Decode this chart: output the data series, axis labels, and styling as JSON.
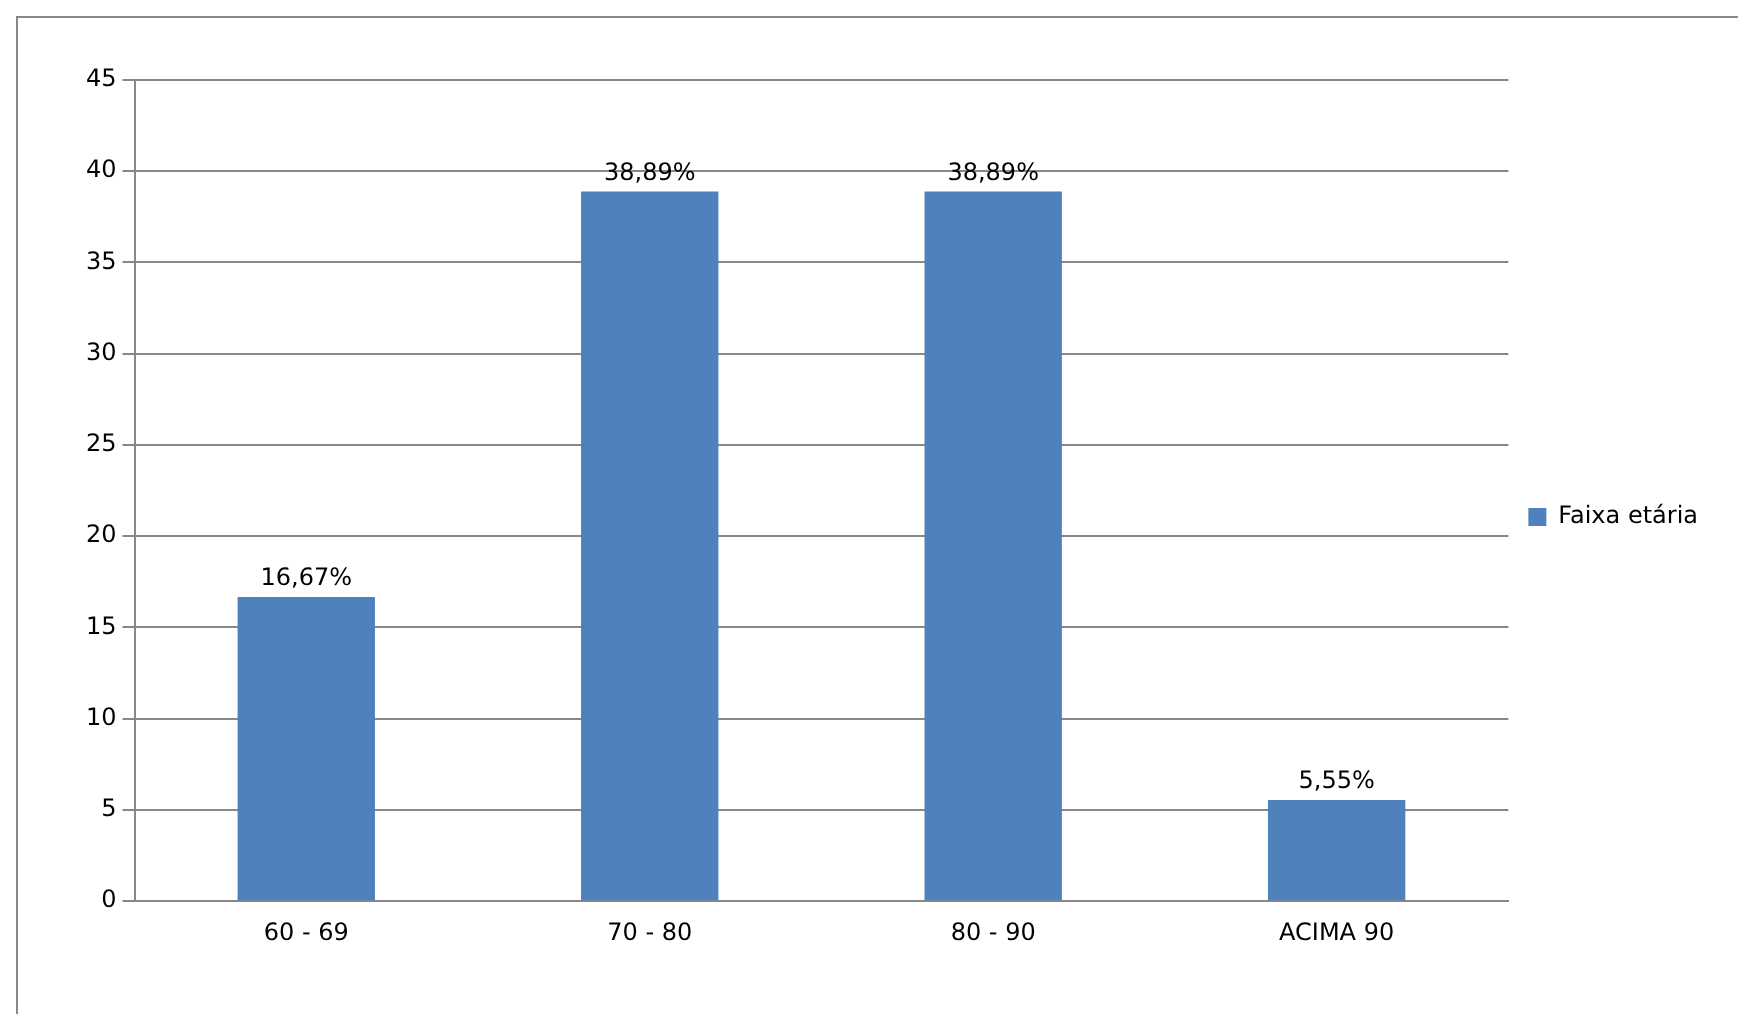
{
  "chart_data": {
    "type": "bar",
    "categories": [
      "60 - 69",
      "70 - 80",
      "80 - 90",
      "ACIMA 90"
    ],
    "series": [
      {
        "name": "Faixa etária",
        "color": "#4f81bd",
        "values": [
          16.67,
          38.89,
          38.89,
          5.55
        ],
        "value_labels": [
          "16,67%",
          "38,89%",
          "38,89%",
          "5,55%"
        ]
      }
    ],
    "ylim": [
      0,
      45
    ],
    "yticks": [
      0,
      5,
      10,
      15,
      20,
      25,
      30,
      35,
      40,
      45
    ],
    "grid": "y",
    "legend": "right"
  }
}
